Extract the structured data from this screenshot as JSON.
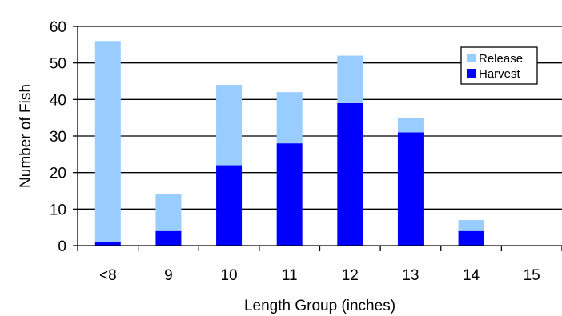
{
  "chart_data": {
    "type": "bar",
    "stacked": true,
    "title": "",
    "xlabel": "Length Group (inches)",
    "ylabel": "Number of Fish",
    "categories": [
      "<8",
      "9",
      "10",
      "11",
      "12",
      "13",
      "14",
      "15"
    ],
    "ylim": [
      0,
      60
    ],
    "yticks": [
      0,
      10,
      20,
      30,
      40,
      50,
      60
    ],
    "grid": true,
    "legend_position": "top-right",
    "series": [
      {
        "name": "Harvest",
        "color": "#0000ff",
        "values": [
          1,
          4,
          22,
          28,
          39,
          31,
          4,
          0
        ]
      },
      {
        "name": "Release",
        "color": "#99ccff",
        "values": [
          55,
          10,
          22,
          14,
          13,
          4,
          3,
          0
        ]
      }
    ]
  }
}
